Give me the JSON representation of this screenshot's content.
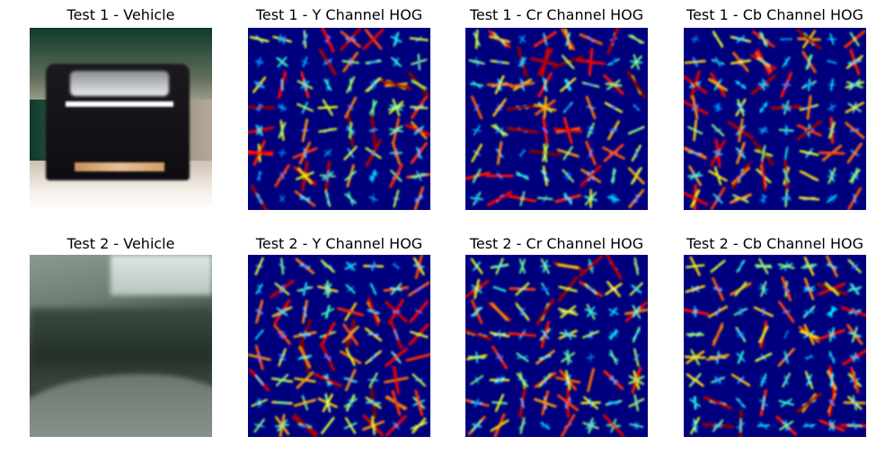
{
  "rows": [
    {
      "panels": [
        {
          "title": "Test 1 - Vehicle",
          "kind": "photo",
          "variant": "car1"
        },
        {
          "title": "Test 1 - Y Channel HOG",
          "kind": "hog"
        },
        {
          "title": "Test 1 - Cr Channel HOG",
          "kind": "hog"
        },
        {
          "title": "Test 1 - Cb Channel HOG",
          "kind": "hog"
        }
      ]
    },
    {
      "panels": [
        {
          "title": "Test 2 - Vehicle",
          "kind": "photo",
          "variant": "car2"
        },
        {
          "title": "Test 2 - Y Channel HOG",
          "kind": "hog"
        },
        {
          "title": "Test 2 - Cr Channel HOG",
          "kind": "hog"
        },
        {
          "title": "Test 2 - Cb Channel HOG",
          "kind": "hog"
        }
      ]
    }
  ],
  "colormap": "jet",
  "colors": {
    "background": "#ffffff",
    "hog_base": "#00007f"
  }
}
